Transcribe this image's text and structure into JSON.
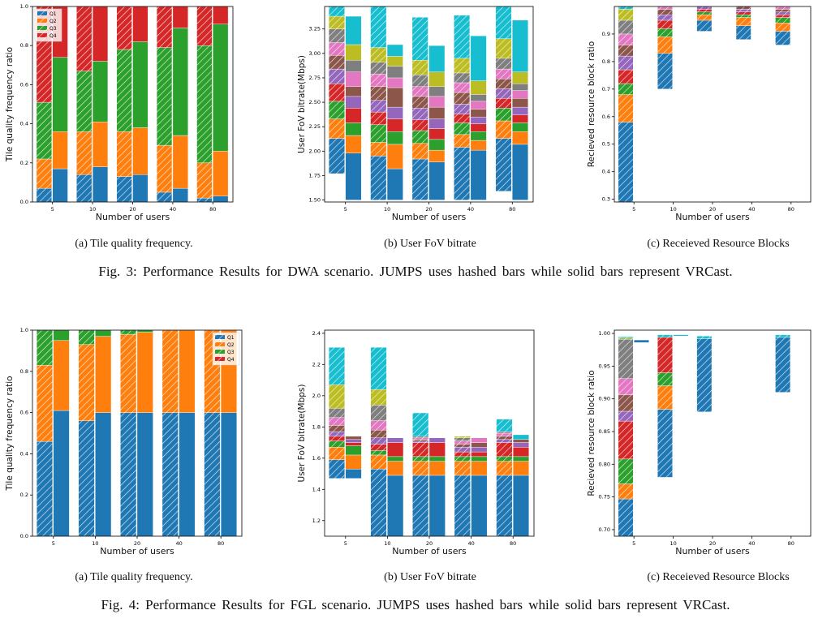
{
  "colors": {
    "q1": "#1f77b4",
    "q2": "#ff7f0e",
    "q3": "#2ca02c",
    "q4": "#d62728",
    "palette": [
      "#1f77b4",
      "#ff7f0e",
      "#2ca02c",
      "#d62728",
      "#9467bd",
      "#8c564b",
      "#e377c2",
      "#7f7f7f",
      "#bcbd22",
      "#17becf"
    ]
  },
  "captions": {
    "fig3": {
      "a": "(a) Tile quality frequency.",
      "b": "(b) User FoV bitrate",
      "c": "(c) Receieved Resource Blocks",
      "title": "Fig. 3: Performance Results for DWA scenario. JUMPS uses hashed bars while solid bars represent VRCast."
    },
    "fig4": {
      "a": "(a) Tile quality frequency.",
      "b": "(b) User FoV bitrate",
      "c": "(c) Receieved Resource Blocks",
      "title": "Fig. 4: Performance Results for FGL scenario. JUMPS uses hashed bars while solid bars represent VRCast."
    }
  },
  "chart_data": [
    {
      "id": "f3a",
      "type": "bar",
      "subtype": "stacked-proportion",
      "xlabel": "Number of users",
      "ylabel": "Tile quality frequency ratio",
      "categories": [
        "5",
        "10",
        "20",
        "40",
        "80"
      ],
      "ylim": [
        0,
        1.0
      ],
      "yticks": [
        "0.0",
        "0.2",
        "0.4",
        "0.6",
        "0.8",
        "1.0"
      ],
      "legend": {
        "position": "top-left",
        "entries": [
          "Q1",
          "Q2",
          "Q3",
          "Q4"
        ]
      },
      "jumps": [
        [
          0.07,
          0.15,
          0.29,
          0.49
        ],
        [
          0.14,
          0.22,
          0.31,
          0.33
        ],
        [
          0.13,
          0.23,
          0.42,
          0.22
        ],
        [
          0.05,
          0.24,
          0.5,
          0.21
        ],
        [
          0.02,
          0.18,
          0.6,
          0.2
        ]
      ],
      "vrcast": [
        [
          0.17,
          0.19,
          0.38,
          0.26
        ],
        [
          0.18,
          0.23,
          0.31,
          0.28
        ],
        [
          0.14,
          0.24,
          0.44,
          0.18
        ],
        [
          0.07,
          0.27,
          0.55,
          0.11
        ],
        [
          0.03,
          0.23,
          0.65,
          0.09
        ]
      ]
    },
    {
      "id": "f3b",
      "type": "bar",
      "subtype": "floating-stacked",
      "xlabel": "Number of users",
      "ylabel": "User FoV bitrate(Mbps)",
      "categories": [
        "5",
        "10",
        "20",
        "40",
        "80"
      ],
      "ylim": [
        1.48,
        3.48
      ],
      "yticks": [
        "1.50",
        "1.75",
        "2.00",
        "2.25",
        "2.50",
        "2.75",
        "3.00",
        "3.25"
      ],
      "jumps": [
        {
          "base": 1.77,
          "segs": [
            0.36,
            0.2,
            0.18,
            0.18,
            0.15,
            0.14,
            0.13,
            0.14,
            0.13,
            0.22
          ]
        },
        {
          "base": 1.5,
          "segs": [
            0.45,
            0.14,
            0.18,
            0.13,
            0.12,
            0.14,
            0.13,
            0.12,
            0.15,
            0.55
          ]
        },
        {
          "base": 1.5,
          "segs": [
            0.42,
            0.16,
            0.13,
            0.11,
            0.12,
            0.12,
            0.1,
            0.12,
            0.15,
            0.44
          ]
        },
        {
          "base": 1.5,
          "segs": [
            0.54,
            0.13,
            0.12,
            0.09,
            0.1,
            0.12,
            0.1,
            0.1,
            0.15,
            0.44
          ]
        },
        {
          "base": 1.59,
          "segs": [
            0.54,
            0.18,
            0.13,
            0.1,
            0.1,
            0.1,
            0.1,
            0.11,
            0.2,
            0.55
          ]
        }
      ],
      "vrcast": [
        {
          "base": 1.5,
          "segs": [
            0.48,
            0.18,
            0.13,
            0.15,
            0.12,
            0.1,
            0.15,
            0.12,
            0.16,
            0.29
          ]
        },
        {
          "base": 1.5,
          "segs": [
            0.32,
            0.25,
            0.13,
            0.13,
            0.12,
            0.2,
            0.1,
            0.12,
            0.1,
            0.12
          ]
        },
        {
          "base": 1.5,
          "segs": [
            0.39,
            0.12,
            0.11,
            0.11,
            0.1,
            0.12,
            0.11,
            0.1,
            0.15,
            0.27
          ]
        },
        {
          "base": 1.5,
          "segs": [
            0.51,
            0.1,
            0.09,
            0.08,
            0.07,
            0.08,
            0.08,
            0.07,
            0.14,
            0.46
          ]
        },
        {
          "base": 1.5,
          "segs": [
            0.57,
            0.13,
            0.09,
            0.08,
            0.08,
            0.09,
            0.08,
            0.07,
            0.12,
            0.53
          ]
        }
      ]
    },
    {
      "id": "f3c",
      "type": "bar",
      "subtype": "floating-stacked",
      "xlabel": "Number of users",
      "ylabel": "Recieved resource block ratio",
      "categories": [
        "5",
        "10",
        "20",
        "40",
        "80"
      ],
      "ylim": [
        0.29,
        1.0
      ],
      "yticks": [
        "0.3",
        "0.4",
        "0.5",
        "0.6",
        "0.7",
        "0.8",
        "0.9"
      ],
      "jumps": [
        {
          "base": 0.29,
          "segs": [
            0.29,
            0.1,
            0.04,
            0.05,
            0.05,
            0.04,
            0.04,
            0.05,
            0.04,
            0.05
          ]
        },
        {
          "base": 0.7,
          "segs": [
            0.13,
            0.06,
            0.03,
            0.03,
            0.02,
            0.02,
            0.02,
            0.01,
            0.01,
            0.01
          ]
        },
        {
          "base": 0.91,
          "segs": [
            0.04,
            0.02,
            0.01,
            0.01,
            0.01,
            0.01,
            0.0,
            0.0,
            0.0,
            0.0
          ]
        },
        {
          "base": 0.88,
          "segs": [
            0.05,
            0.03,
            0.01,
            0.01,
            0.01,
            0.01,
            0.01,
            0.0,
            0.0,
            0.0
          ]
        },
        {
          "base": 0.86,
          "segs": [
            0.05,
            0.03,
            0.02,
            0.01,
            0.01,
            0.01,
            0.01,
            0.01,
            0.0,
            0.0
          ]
        }
      ],
      "vrcast": []
    },
    {
      "id": "f4a",
      "type": "bar",
      "subtype": "stacked-proportion",
      "xlabel": "Number of users",
      "ylabel": "Tile quality frequency ratio",
      "categories": [
        "5",
        "10",
        "20",
        "40",
        "80"
      ],
      "ylim": [
        0,
        1.0
      ],
      "yticks": [
        "0.0",
        "0.2",
        "0.4",
        "0.6",
        "0.8",
        "1.0"
      ],
      "legend": {
        "position": "top-right",
        "entries": [
          "Q1",
          "Q2",
          "Q3",
          "Q4"
        ]
      },
      "jumps": [
        [
          0.46,
          0.37,
          0.17,
          0.0
        ],
        [
          0.56,
          0.37,
          0.07,
          0.0
        ],
        [
          0.6,
          0.38,
          0.02,
          0.0
        ],
        [
          0.6,
          0.4,
          0.0,
          0.0
        ],
        [
          0.6,
          0.4,
          0.0,
          0.0
        ]
      ],
      "vrcast": [
        [
          0.61,
          0.34,
          0.05,
          0.0
        ],
        [
          0.6,
          0.37,
          0.03,
          0.0
        ],
        [
          0.6,
          0.39,
          0.01,
          0.0
        ],
        [
          0.6,
          0.4,
          0.0,
          0.0
        ],
        [
          0.6,
          0.4,
          0.0,
          0.0
        ]
      ]
    },
    {
      "id": "f4b",
      "type": "bar",
      "subtype": "floating-stacked",
      "xlabel": "Number of users",
      "ylabel": "User FoV bitrate(Mbps)",
      "categories": [
        "5",
        "10",
        "20",
        "40",
        "80"
      ],
      "ylim": [
        1.1,
        2.42
      ],
      "yticks": [
        "1.2",
        "1.4",
        "1.6",
        "1.8",
        "2.0",
        "2.2",
        "2.4"
      ],
      "jumps": [
        {
          "base": 1.47,
          "segs": [
            0.12,
            0.08,
            0.04,
            0.03,
            0.03,
            0.04,
            0.05,
            0.06,
            0.15,
            0.24
          ]
        },
        {
          "base": 1.1,
          "segs": [
            0.43,
            0.09,
            0.03,
            0.04,
            0.04,
            0.05,
            0.06,
            0.1,
            0.1,
            0.27
          ]
        },
        {
          "base": 1.1,
          "segs": [
            0.39,
            0.09,
            0.03,
            0.09,
            0.01,
            0.01,
            0.01,
            0.01,
            0.0,
            0.15
          ]
        },
        {
          "base": 1.1,
          "segs": [
            0.39,
            0.09,
            0.03,
            0.03,
            0.03,
            0.02,
            0.02,
            0.02,
            0.01,
            0.0
          ]
        },
        {
          "base": 1.1,
          "segs": [
            0.39,
            0.09,
            0.03,
            0.09,
            0.02,
            0.02,
            0.02,
            0.01,
            0.0,
            0.08
          ]
        }
      ],
      "vrcast": [
        {
          "base": 1.47,
          "segs": [
            0.06,
            0.09,
            0.06,
            0.02,
            0.02,
            0.02,
            0.0,
            0.0,
            0.0,
            0.0
          ]
        },
        {
          "base": 1.1,
          "segs": [
            0.39,
            0.09,
            0.03,
            0.09,
            0.03,
            0.0,
            0.0,
            0.0,
            0.0,
            0.0
          ]
        },
        {
          "base": 1.1,
          "segs": [
            0.39,
            0.09,
            0.03,
            0.09,
            0.03,
            0.0,
            0.0,
            0.0,
            0.0,
            0.0
          ]
        },
        {
          "base": 1.1,
          "segs": [
            0.39,
            0.09,
            0.03,
            0.03,
            0.03,
            0.03,
            0.03,
            0.0,
            0.0,
            0.0
          ]
        },
        {
          "base": 1.1,
          "segs": [
            0.39,
            0.09,
            0.03,
            0.06,
            0.03,
            0.02,
            0.0,
            0.0,
            0.0,
            0.03
          ]
        }
      ]
    },
    {
      "id": "f4c",
      "type": "bar",
      "subtype": "floating-stacked",
      "xlabel": "Number of users",
      "ylabel": "Recieved resource block ratio",
      "categories": [
        "5",
        "10",
        "20",
        "40",
        "80"
      ],
      "ylim": [
        0.69,
        1.005
      ],
      "yticks": [
        "0.70",
        "0.75",
        "0.80",
        "0.85",
        "0.90",
        "0.95",
        "1.00"
      ],
      "jumps": [
        {
          "base": 0.69,
          "segs": [
            0.057,
            0.023,
            0.038,
            0.058,
            0.015,
            0.025,
            0.025,
            0.06,
            0.002,
            0.002
          ]
        },
        {
          "base": 0.78,
          "segs": [
            0.104,
            0.036,
            0.02,
            0.054,
            0.0,
            0.0,
            0.0,
            0.0,
            0.0,
            0.004
          ]
        },
        {
          "base": 0.88,
          "segs": [
            0.112,
            0.0,
            0.0,
            0.0,
            0.0,
            0.0,
            0.0,
            0.0,
            0.0,
            0.004
          ]
        },
        {
          "base": 1.0,
          "segs": [
            0,
            0,
            0,
            0,
            0,
            0,
            0,
            0,
            0,
            0
          ]
        },
        {
          "base": 0.91,
          "segs": [
            0.084,
            0.0,
            0.0,
            0.0,
            0.0,
            0.0,
            0.0,
            0.0,
            0.0,
            0.004
          ]
        }
      ],
      "vrcast": [
        {
          "base": 0.986,
          "segs": [
            0.004,
            0,
            0,
            0,
            0,
            0,
            0,
            0,
            0,
            0
          ]
        },
        {
          "base": 0.996,
          "segs": [
            0,
            0,
            0,
            0,
            0,
            0,
            0,
            0,
            0,
            0.002
          ]
        },
        {
          "base": 1.0,
          "segs": [
            0,
            0,
            0,
            0,
            0,
            0,
            0,
            0,
            0,
            0
          ]
        },
        {
          "base": 1.0,
          "segs": [
            0,
            0,
            0,
            0,
            0,
            0,
            0,
            0,
            0,
            0
          ]
        },
        {
          "base": 1.0,
          "segs": [
            0,
            0,
            0,
            0,
            0,
            0,
            0,
            0,
            0,
            0
          ]
        }
      ]
    }
  ]
}
